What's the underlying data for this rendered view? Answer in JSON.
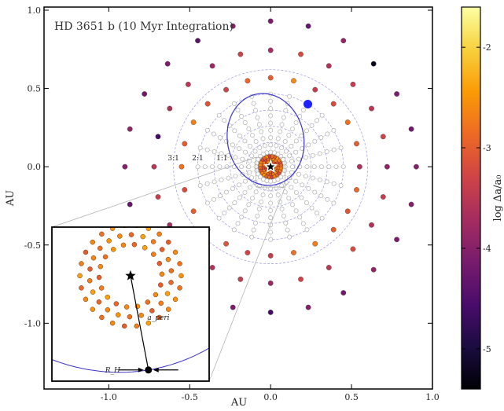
{
  "chart_data": {
    "type": "scatter",
    "title": "HD 3651 b (10 Myr Integration)",
    "xlabel": "AU",
    "ylabel": "AU",
    "xlim": [
      -1.4,
      1.0
    ],
    "ylim": [
      -1.42,
      1.02
    ],
    "xticks": [
      "-1.0",
      "-0.5",
      "0.0",
      "0.5",
      "1.0"
    ],
    "yticks": [
      "1.0",
      "0.5",
      "0.0",
      "-0.5",
      "-1.0"
    ],
    "colorbar": {
      "label": "log Δa/a₀",
      "range": [
        -5.4,
        -1.6
      ],
      "ticks": [
        "-2",
        "-3",
        "-4",
        "-5"
      ],
      "colors": [
        "#000004",
        "#1b0c41",
        "#4a0c6b",
        "#781c6d",
        "#a52c60",
        "#cf4446",
        "#ed6925",
        "#fb9b06",
        "#f7d13d",
        "#fcffa4"
      ]
    },
    "resonance_labels": [
      {
        "text": "3:1",
        "x": -0.6,
        "y": 0.04
      },
      {
        "text": "2:1",
        "x": -0.45,
        "y": 0.04
      },
      {
        "text": "1:1",
        "x": -0.3,
        "y": 0.04
      }
    ],
    "planet": {
      "x": 0.23,
      "y": 0.4
    },
    "star": {
      "x": 0.0,
      "y": 0.0
    },
    "orbit": {
      "a": 0.295,
      "e": 0.6,
      "pericenter_angle_deg": -80
    },
    "grid_circles": [
      0.15,
      0.25,
      0.35,
      0.45,
      0.6
    ],
    "survivors": {
      "radii": [
        0.55,
        0.72,
        0.9
      ],
      "angles_deg": [
        0,
        15,
        30,
        45,
        60,
        75,
        90,
        105,
        120,
        135,
        150,
        165,
        180,
        195,
        210,
        225,
        240,
        255,
        270,
        285,
        300,
        315,
        330,
        345
      ],
      "log_da": [
        [
          -3.6,
          -3.0,
          -2.8,
          -3.2,
          -3.4,
          -2.6,
          -3.0,
          -2.9,
          -3.3,
          -3.1,
          -2.7,
          -3.0,
          -2.8,
          -3.2,
          -3.0,
          -2.9,
          -3.1,
          -3.3,
          -3.4,
          -2.8,
          -2.7,
          -3.0,
          -3.1,
          -2.9
        ],
        [
          -3.9,
          -3.3,
          -3.5,
          -3.4,
          -3.6,
          -3.2,
          -3.7,
          -3.3,
          -3.8,
          -3.5,
          -3.6,
          -4.6,
          -3.5,
          -3.4,
          -3.7,
          -3.3,
          -3.6,
          -3.4,
          -3.8,
          -3.3,
          -3.5,
          -3.2,
          -3.6,
          -3.4
        ],
        [
          -4.0,
          -4.2,
          -4.1,
          -5.2,
          -3.9,
          -4.3,
          -4.1,
          -4.0,
          -4.4,
          -4.1,
          -4.2,
          -3.9,
          -4.0,
          -4.3,
          -4.1,
          -4.0,
          -4.2,
          -4.1,
          -4.6,
          -4.0,
          -4.2,
          -3.9,
          -4.1,
          -4.0
        ]
      ]
    },
    "inset": {
      "xlim": [
        -0.09,
        0.09
      ],
      "ylim": [
        -0.13,
        0.06
      ],
      "labels": {
        "r_hill": "R_H",
        "a_peri": "a_peri"
      },
      "rings": [
        {
          "r": 0.058,
          "n": 26,
          "rot": 0
        },
        {
          "r": 0.047,
          "n": 22,
          "rot": 7
        },
        {
          "r": 0.036,
          "n": 18,
          "rot": 3
        }
      ]
    }
  }
}
